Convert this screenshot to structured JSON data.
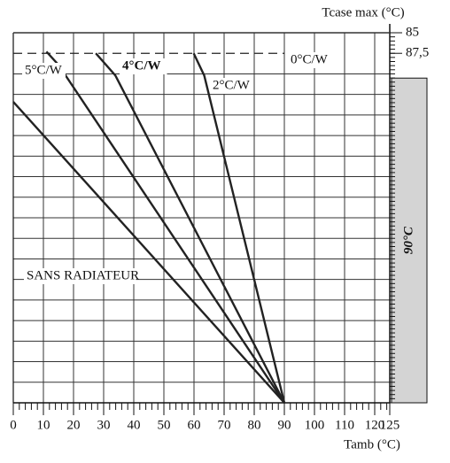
{
  "chart_data": {
    "type": "line",
    "title": "Tcase max (°C)",
    "x_label": "Tamb (°C)",
    "xlim": [
      0,
      125
    ],
    "xticks": [
      0,
      10,
      20,
      30,
      40,
      50,
      60,
      70,
      80,
      90,
      100,
      110,
      120,
      125
    ],
    "ylim": [
      130,
      85
    ],
    "yticks": [
      85,
      {
        "value": 87.5,
        "label": "87,5"
      }
    ],
    "grid": true,
    "zone_label": "90°C",
    "series": [
      {
        "name": "SANS RADIATEUR",
        "color": "#222222",
        "x": [
          0,
          90
        ],
        "values": [
          93.4,
          130
        ]
      },
      {
        "name": "5°C/W",
        "color": "#222222",
        "x": [
          11,
          15,
          90
        ],
        "values": [
          87.3,
          88.9,
          130
        ]
      },
      {
        "name": "4°C/W",
        "color": "#222222",
        "x": [
          27.4,
          33.9,
          90
        ],
        "values": [
          87.5,
          90.2,
          130
        ]
      },
      {
        "name": "2°C/W",
        "color": "#222222",
        "x": [
          59.9,
          63.4,
          90
        ],
        "values": [
          87.5,
          90.2,
          130
        ]
      },
      {
        "name": "0°C/W",
        "color": "#222222",
        "dashed": true,
        "x": [
          0,
          90
        ],
        "values": [
          87.5,
          87.5
        ]
      }
    ]
  }
}
